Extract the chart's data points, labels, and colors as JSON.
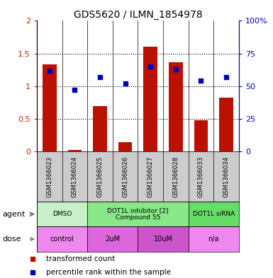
{
  "title": "GDS5620 / ILMN_1854978",
  "samples": [
    "GSM1366023",
    "GSM1366024",
    "GSM1366025",
    "GSM1366026",
    "GSM1366027",
    "GSM1366028",
    "GSM1366033",
    "GSM1366034"
  ],
  "bar_values": [
    1.33,
    0.02,
    0.7,
    0.14,
    1.6,
    1.37,
    0.48,
    0.82
  ],
  "dot_values_pct": [
    62,
    47,
    57,
    52,
    65,
    63,
    54,
    57
  ],
  "bar_color": "#bb1100",
  "dot_color": "#0000bb",
  "ylim_left": [
    0,
    2
  ],
  "ylim_right": [
    0,
    100
  ],
  "yticks_left": [
    0,
    0.5,
    1.0,
    1.5,
    2.0
  ],
  "yticks_right": [
    0,
    25,
    50,
    75,
    100
  ],
  "ytick_labels_left": [
    "0",
    "0.5",
    "1",
    "1.5",
    "2"
  ],
  "ytick_labels_right": [
    "0",
    "25",
    "50",
    "75",
    "100%"
  ],
  "agent_groups": [
    {
      "label": "DMSO",
      "cols": [
        0,
        1
      ],
      "color": "#c8f0c8"
    },
    {
      "label": "DOT1L inhibitor [2]\nCompound 55",
      "cols": [
        2,
        3,
        4,
        5
      ],
      "color": "#88e888"
    },
    {
      "label": "DOT1L siRNA",
      "cols": [
        6,
        7
      ],
      "color": "#66dd66"
    }
  ],
  "dose_groups": [
    {
      "label": "control",
      "cols": [
        0,
        1
      ],
      "color": "#ee88ee"
    },
    {
      "label": "2uM",
      "cols": [
        2,
        3
      ],
      "color": "#dd66dd"
    },
    {
      "label": "10uM",
      "cols": [
        4,
        5
      ],
      "color": "#cc55cc"
    },
    {
      "label": "n/a",
      "cols": [
        6,
        7
      ],
      "color": "#ee88ee"
    }
  ],
  "legend_items": [
    {
      "label": "transformed count",
      "color": "#bb1100"
    },
    {
      "label": "percentile rank within the sample",
      "color": "#0000bb"
    }
  ],
  "axis_color_left": "#cc2200",
  "axis_color_right": "#0000cc",
  "sample_bg_color": "#cccccc",
  "bg_color": "#ffffff"
}
